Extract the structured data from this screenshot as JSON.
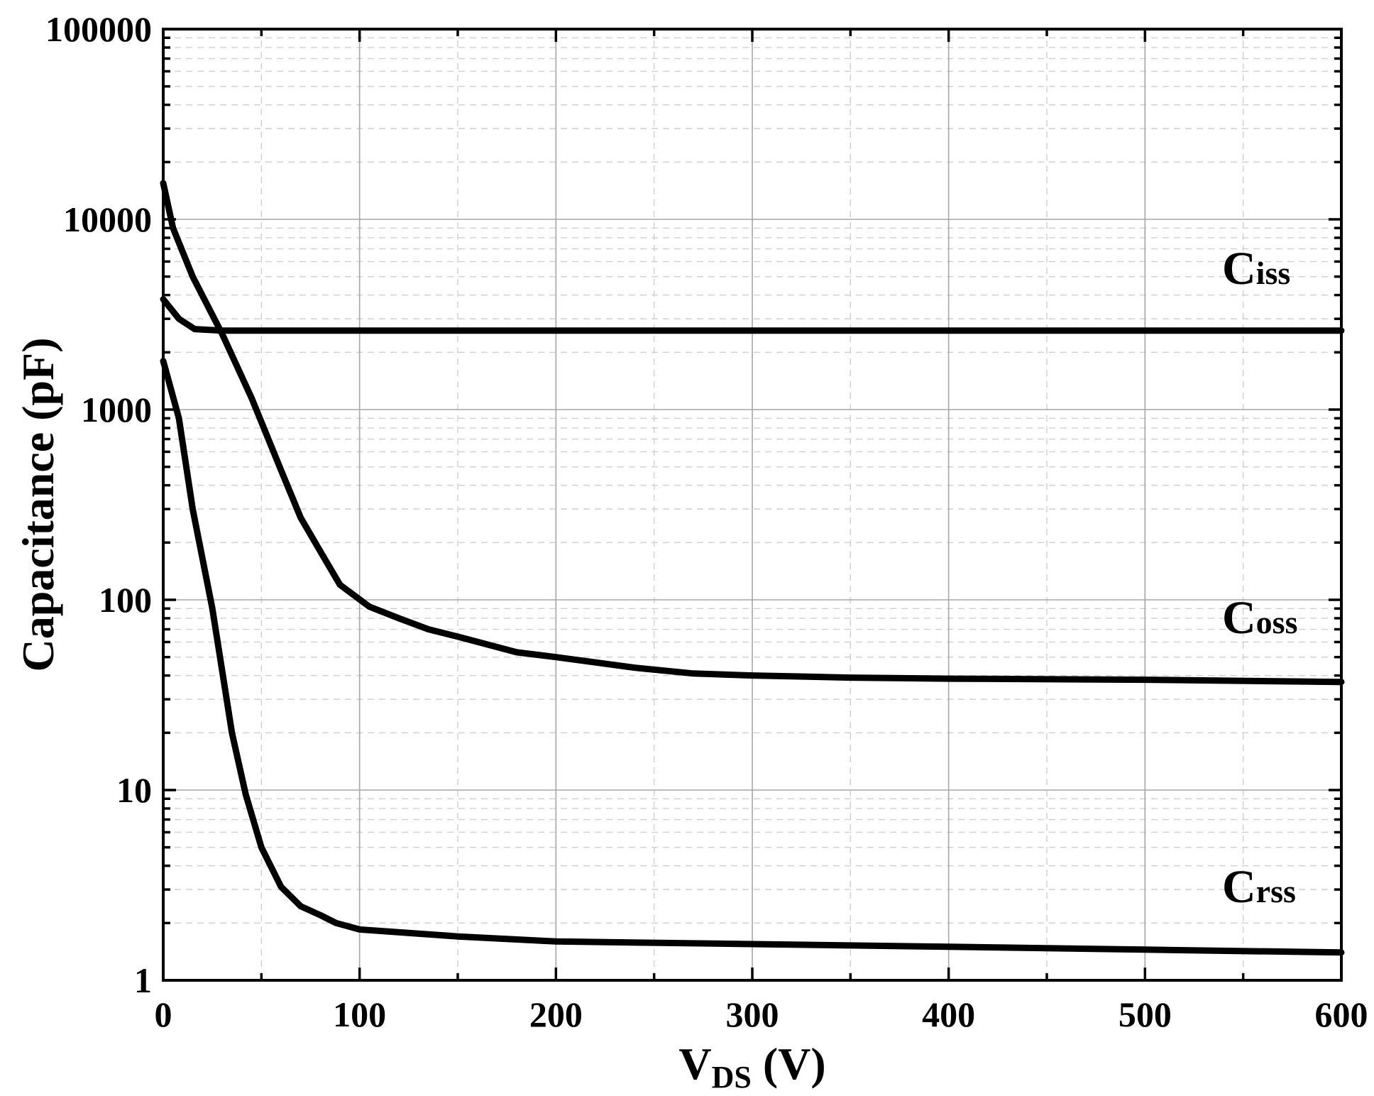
{
  "chart_data": {
    "type": "line",
    "title": "",
    "xlabel": {
      "main": "V",
      "sub": "DS",
      "unit": " (V)"
    },
    "ylabel": "Capacitance (pF)",
    "xlim": [
      0,
      600
    ],
    "ylim": [
      1,
      100000
    ],
    "yscale": "log",
    "grid": true,
    "x_ticks": [
      0,
      100,
      200,
      300,
      400,
      500,
      600
    ],
    "x_tick_labels": [
      "0",
      "100",
      "200",
      "300",
      "400",
      "500",
      "600"
    ],
    "y_ticks": [
      1,
      10,
      100,
      1000,
      10000,
      100000
    ],
    "y_tick_labels": [
      "1",
      "10",
      "100",
      "1000",
      "10000",
      "100000"
    ],
    "series": [
      {
        "name": "Ciss",
        "label_main": "C",
        "label_sub": "iss",
        "x": [
          0,
          8,
          16,
          30,
          100,
          200,
          300,
          400,
          500,
          600
        ],
        "y": [
          3800,
          3000,
          2650,
          2600,
          2600,
          2600,
          2600,
          2600,
          2600,
          2600
        ]
      },
      {
        "name": "Coss",
        "label_main": "C",
        "label_sub": "oss",
        "x": [
          0,
          5,
          15,
          30,
          45,
          60,
          70,
          80,
          90,
          105,
          120,
          135,
          150,
          180,
          200,
          240,
          270,
          300,
          350,
          400,
          500,
          600
        ],
        "y": [
          15500,
          9000,
          5000,
          2500,
          1150,
          480,
          270,
          180,
          120,
          92,
          80,
          70,
          64,
          53,
          50,
          44,
          41,
          40,
          39,
          38.5,
          38,
          37
        ]
      },
      {
        "name": "Crss",
        "label_main": "C",
        "label_sub": "rss",
        "x": [
          0,
          8,
          15,
          25,
          35,
          42,
          50,
          60,
          70,
          80,
          88,
          100,
          150,
          200,
          300,
          400,
          500,
          600
        ],
        "y": [
          1800,
          900,
          300,
          90,
          20,
          9.5,
          5,
          3.1,
          2.45,
          2.2,
          2.0,
          1.85,
          1.7,
          1.6,
          1.55,
          1.5,
          1.45,
          1.4
        ]
      }
    ],
    "annotations": [
      {
        "series": "Ciss",
        "position": "right, above curve"
      },
      {
        "series": "Coss",
        "position": "right, above curve"
      },
      {
        "series": "Crss",
        "position": "right, above curve"
      }
    ]
  }
}
